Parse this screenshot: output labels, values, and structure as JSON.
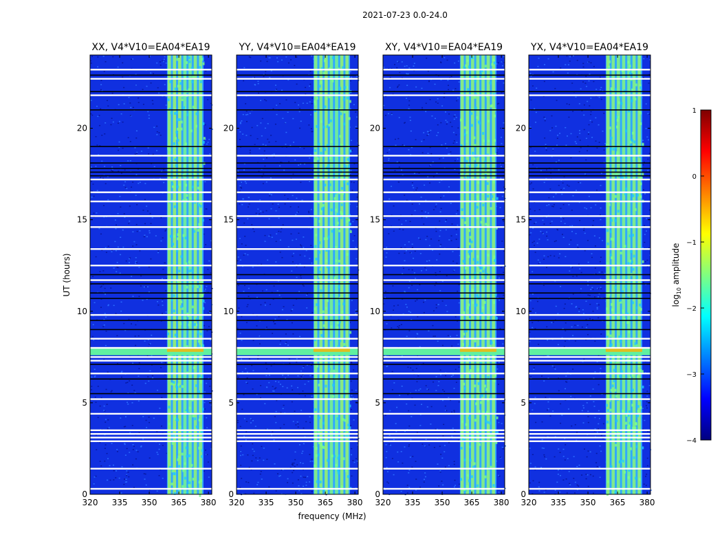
{
  "figure_title": "2021-07-23 0.0-24.0",
  "chart_data": [
    {
      "type": "heatmap",
      "title": "XX, V4*V10=EA04*EA19",
      "xlabel": "",
      "ylabel": "UT (hours)",
      "xlim": [
        320,
        381.7
      ],
      "ylim": [
        0,
        24
      ],
      "xticks": [
        320,
        335,
        350,
        365,
        380
      ],
      "yticks": [
        0,
        5,
        10,
        15,
        20
      ],
      "bright_band_mhz": [
        359,
        377.5
      ]
    },
    {
      "type": "heatmap",
      "title": "YY, V4*V10=EA04*EA19",
      "xlabel": "frequency (MHz)",
      "ylabel": "",
      "xlim": [
        320,
        381.7
      ],
      "ylim": [
        0,
        24
      ],
      "xticks": [
        320,
        335,
        350,
        365,
        380
      ],
      "yticks": [
        0,
        5,
        10,
        15,
        20
      ],
      "bright_band_mhz": [
        359,
        377.5
      ]
    },
    {
      "type": "heatmap",
      "title": "XY, V4*V10=EA04*EA19",
      "xlabel": "",
      "ylabel": "",
      "xlim": [
        320,
        381.7
      ],
      "ylim": [
        0,
        24
      ],
      "xticks": [
        320,
        335,
        350,
        365,
        380
      ],
      "yticks": [
        0,
        5,
        10,
        15,
        20
      ],
      "bright_band_mhz": [
        359,
        377.5
      ]
    },
    {
      "type": "heatmap",
      "title": "YX, V4*V10=EA04*EA19",
      "xlabel": "",
      "ylabel": "",
      "xlim": [
        320,
        381.7
      ],
      "ylim": [
        0,
        24
      ],
      "xticks": [
        320,
        335,
        350,
        365,
        380
      ],
      "yticks": [
        0,
        5,
        10,
        15,
        20
      ],
      "bright_band_mhz": [
        359,
        377.5
      ]
    }
  ],
  "shared": {
    "flagged_white_hours": [
      0.3,
      1.4,
      2.9,
      3.1,
      3.3,
      3.5,
      4.4,
      5.2,
      6.6,
      7.3,
      7.5,
      8.0,
      8.5,
      9.8,
      11.7,
      12.5,
      13.4,
      14.6,
      15.2,
      16.0,
      16.5,
      17.2,
      18.5,
      21.8,
      22.7,
      23.2
    ],
    "flagged_black_hours": [
      5.5,
      6.3,
      7.1,
      9.0,
      9.5,
      10.7,
      11.0,
      11.5,
      12.0,
      17.4,
      17.6,
      17.8,
      18.1,
      19.0,
      21.0,
      22.0,
      22.9
    ],
    "rfi_burst_hours": [
      7.6,
      8.0
    ],
    "colorbar": {
      "label": "log10 amplitude",
      "range": [
        -4,
        1
      ],
      "ticks": [
        "1",
        "0",
        "−1",
        "−2",
        "−3",
        "−4"
      ],
      "colors": [
        "#00007f",
        "#0000ff",
        "#0080ff",
        "#00ffff",
        "#80ff80",
        "#ffff00",
        "#ff8000",
        "#ff0000",
        "#7f0000"
      ]
    }
  }
}
